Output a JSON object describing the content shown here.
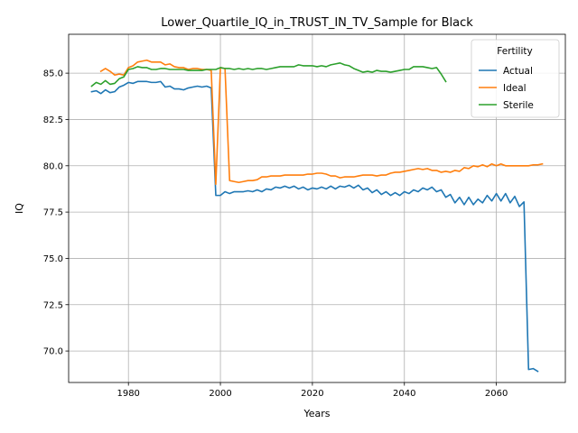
{
  "chart_data": {
    "type": "line",
    "title": "Lower_Quartile_IQ_in_TRUST_IN_TV_Sample for Black",
    "xlabel": "Years",
    "ylabel": "IQ",
    "xlim": [
      1967,
      2075
    ],
    "ylim": [
      68.3,
      87.1
    ],
    "xticks": [
      1980,
      2000,
      2020,
      2040,
      2060
    ],
    "xtick_labels": [
      "1980",
      "2000",
      "2020",
      "2040",
      "2060"
    ],
    "yticks": [
      70.0,
      72.5,
      75.0,
      77.5,
      80.0,
      82.5,
      85.0
    ],
    "ytick_labels": [
      "70.0",
      "72.5",
      "75.0",
      "77.5",
      "80.0",
      "82.5",
      "85.0"
    ],
    "grid": true,
    "legend": {
      "title": "Fertility",
      "placement": "top-right"
    },
    "series": [
      {
        "name": "Actual",
        "color": "#1f77b4",
        "x": [
          1972,
          1973,
          1974,
          1975,
          1976,
          1977,
          1978,
          1979,
          1980,
          1981,
          1982,
          1983,
          1984,
          1985,
          1986,
          1987,
          1988,
          1989,
          1990,
          1991,
          1992,
          1993,
          1994,
          1995,
          1996,
          1997,
          1998,
          1999,
          2000,
          2001,
          2002,
          2003,
          2004,
          2005,
          2006,
          2007,
          2008,
          2009,
          2010,
          2011,
          2012,
          2013,
          2014,
          2015,
          2016,
          2017,
          2018,
          2019,
          2020,
          2021,
          2022,
          2023,
          2024,
          2025,
          2026,
          2027,
          2028,
          2029,
          2030,
          2031,
          2032,
          2033,
          2034,
          2035,
          2036,
          2037,
          2038,
          2039,
          2040,
          2041,
          2042,
          2043,
          2044,
          2045,
          2046,
          2047,
          2048,
          2049,
          2050,
          2051,
          2052,
          2053,
          2054,
          2055,
          2056,
          2057,
          2058,
          2059,
          2060,
          2061,
          2062,
          2063,
          2064,
          2065,
          2066,
          2067,
          2068,
          2069,
          2070
        ],
        "values": [
          84.0,
          84.05,
          83.9,
          84.1,
          83.95,
          84.0,
          84.25,
          84.35,
          84.5,
          84.45,
          84.55,
          84.55,
          84.55,
          84.5,
          84.5,
          84.55,
          84.25,
          84.3,
          84.15,
          84.15,
          84.1,
          84.2,
          84.25,
          84.3,
          84.25,
          84.3,
          84.2,
          78.4,
          78.4,
          78.6,
          78.5,
          78.6,
          78.6,
          78.6,
          78.65,
          78.6,
          78.7,
          78.6,
          78.75,
          78.7,
          78.85,
          78.8,
          78.9,
          78.8,
          78.9,
          78.75,
          78.85,
          78.7,
          78.8,
          78.75,
          78.85,
          78.75,
          78.9,
          78.75,
          78.9,
          78.85,
          78.95,
          78.8,
          78.95,
          78.7,
          78.8,
          78.55,
          78.7,
          78.45,
          78.6,
          78.4,
          78.55,
          78.4,
          78.6,
          78.5,
          78.7,
          78.6,
          78.8,
          78.7,
          78.85,
          78.6,
          78.7,
          78.3,
          78.45,
          78.0,
          78.3,
          77.9,
          78.3,
          77.9,
          78.2,
          78.0,
          78.4,
          78.1,
          78.5,
          78.1,
          78.5,
          78.0,
          78.35,
          77.8,
          78.05,
          69.0,
          69.05,
          68.9,
          null
        ],
        "x_end": 2070
      },
      {
        "name": "Ideal",
        "color": "#ff7f0e",
        "x": [
          1974,
          1975,
          1976,
          1977,
          1978,
          1979,
          1980,
          1981,
          1982,
          1983,
          1984,
          1985,
          1986,
          1987,
          1988,
          1989,
          1990,
          1991,
          1992,
          1993,
          1994,
          1995,
          1996,
          1997,
          1998,
          1999,
          2000,
          2001,
          2002,
          2003,
          2004,
          2005,
          2006,
          2007,
          2008,
          2009,
          2010,
          2011,
          2012,
          2013,
          2014,
          2015,
          2016,
          2017,
          2018,
          2019,
          2020,
          2021,
          2022,
          2023,
          2024,
          2025,
          2026,
          2027,
          2028,
          2029,
          2030,
          2031,
          2032,
          2033,
          2034,
          2035,
          2036,
          2037,
          2038,
          2039,
          2040,
          2041,
          2042,
          2043,
          2044,
          2045,
          2046,
          2047,
          2048,
          2049,
          2050,
          2051,
          2052,
          2053,
          2054,
          2055,
          2056,
          2057,
          2058,
          2059,
          2060,
          2061,
          2062,
          2063,
          2064,
          2065,
          2066,
          2067,
          2068,
          2069,
          2070
        ],
        "values": [
          85.1,
          85.25,
          85.1,
          84.9,
          84.95,
          84.9,
          85.3,
          85.4,
          85.6,
          85.65,
          85.7,
          85.6,
          85.6,
          85.6,
          85.45,
          85.5,
          85.35,
          85.3,
          85.3,
          85.2,
          85.25,
          85.25,
          85.2,
          85.2,
          85.15,
          79.0,
          85.3,
          85.25,
          79.2,
          79.15,
          79.1,
          79.15,
          79.2,
          79.2,
          79.25,
          79.4,
          79.4,
          79.45,
          79.45,
          79.45,
          79.5,
          79.5,
          79.5,
          79.5,
          79.5,
          79.55,
          79.55,
          79.6,
          79.6,
          79.55,
          79.45,
          79.45,
          79.35,
          79.4,
          79.4,
          79.4,
          79.45,
          79.5,
          79.5,
          79.5,
          79.45,
          79.5,
          79.5,
          79.6,
          79.65,
          79.65,
          79.7,
          79.75,
          79.8,
          79.85,
          79.8,
          79.85,
          79.75,
          79.75,
          79.65,
          79.7,
          79.65,
          79.75,
          79.7,
          79.9,
          79.85,
          80.0,
          79.95,
          80.05,
          79.95,
          80.1,
          80.0,
          80.1,
          80.0,
          80.0,
          80.0,
          80.0,
          80.0,
          80.0,
          80.05,
          80.05,
          80.1
        ]
      },
      {
        "name": "Sterile",
        "color": "#2ca02c",
        "x": [
          1972,
          1973,
          1974,
          1975,
          1976,
          1977,
          1978,
          1979,
          1980,
          1981,
          1982,
          1983,
          1984,
          1985,
          1986,
          1987,
          1988,
          1989,
          1990,
          1991,
          1992,
          1993,
          1994,
          1995,
          1996,
          1997,
          1998,
          1999,
          2000,
          2001,
          2002,
          2003,
          2004,
          2005,
          2006,
          2007,
          2008,
          2009,
          2010,
          2011,
          2012,
          2013,
          2014,
          2015,
          2016,
          2017,
          2018,
          2019,
          2020,
          2021,
          2022,
          2023,
          2024,
          2025,
          2026,
          2027,
          2028,
          2029,
          2030,
          2031,
          2032,
          2033,
          2034,
          2035,
          2036,
          2037,
          2038,
          2039,
          2040,
          2041,
          2042,
          2043,
          2044,
          2045,
          2046,
          2047,
          2048,
          2049
        ],
        "values": [
          84.3,
          84.5,
          84.4,
          84.6,
          84.4,
          84.45,
          84.7,
          84.8,
          85.2,
          85.25,
          85.35,
          85.3,
          85.3,
          85.2,
          85.2,
          85.25,
          85.25,
          85.2,
          85.2,
          85.2,
          85.2,
          85.15,
          85.15,
          85.15,
          85.15,
          85.2,
          85.2,
          85.2,
          85.3,
          85.25,
          85.25,
          85.2,
          85.25,
          85.2,
          85.25,
          85.2,
          85.25,
          85.25,
          85.2,
          85.25,
          85.3,
          85.35,
          85.35,
          85.35,
          85.35,
          85.45,
          85.4,
          85.4,
          85.4,
          85.35,
          85.4,
          85.35,
          85.45,
          85.5,
          85.55,
          85.45,
          85.4,
          85.25,
          85.15,
          85.05,
          85.1,
          85.05,
          85.15,
          85.1,
          85.1,
          85.05,
          85.1,
          85.15,
          85.2,
          85.2,
          85.35,
          85.35,
          85.35,
          85.3,
          85.25,
          85.3,
          84.95,
          84.55
        ]
      }
    ]
  }
}
